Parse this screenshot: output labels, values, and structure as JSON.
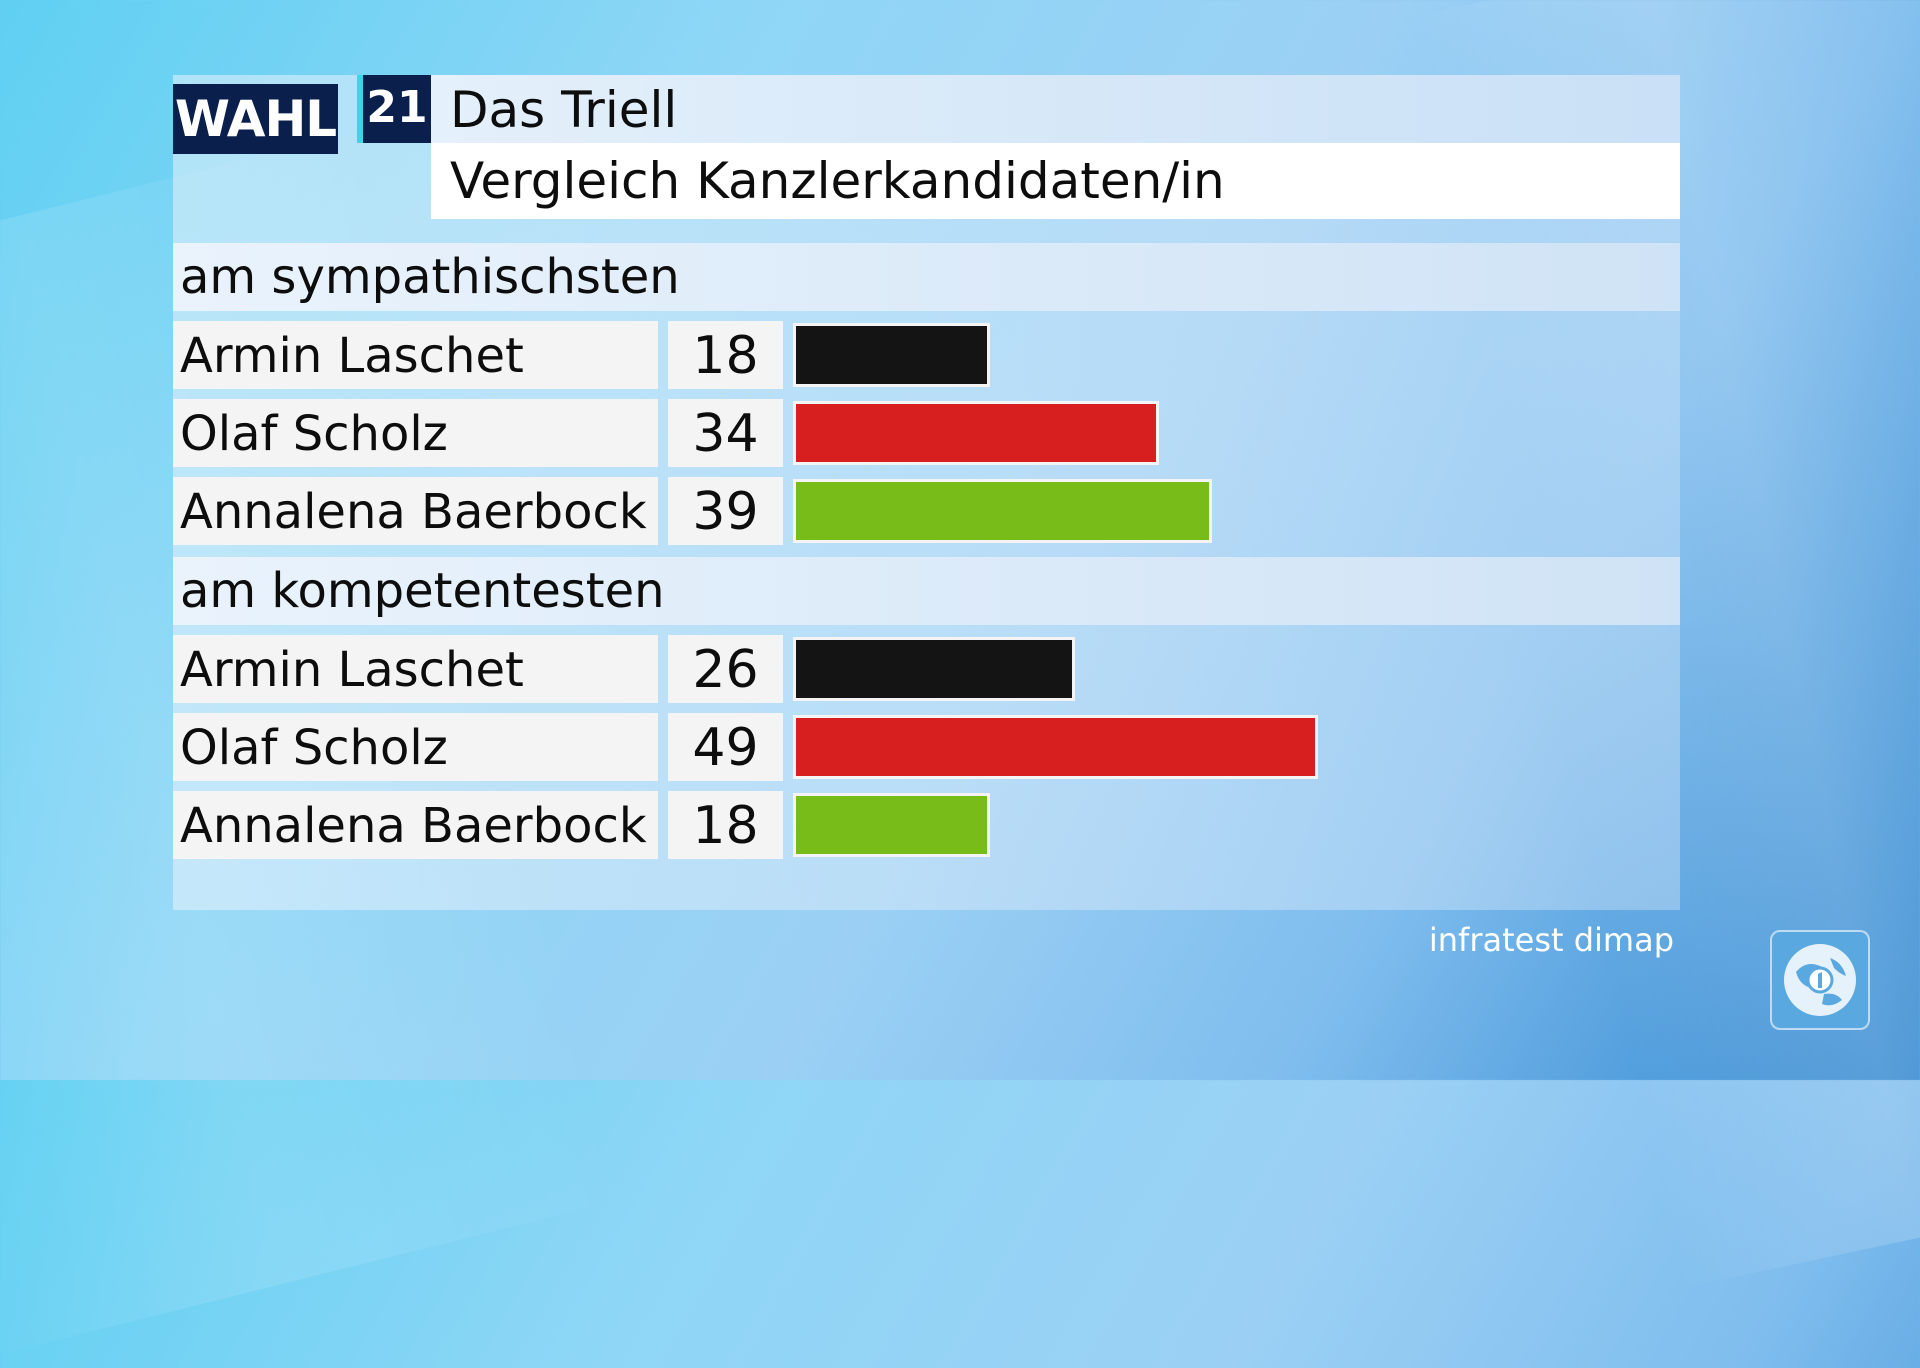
{
  "header": {
    "logo_word": "WAHL",
    "logo_number": "21",
    "title": "Das Triell",
    "subtitle": "Vergleich Kanzlerkandidaten/in"
  },
  "source": "infratest dimap",
  "chart_data": {
    "type": "bar",
    "title": "Das Triell",
    "subtitle": "Vergleich Kanzlerkandidaten/in",
    "groups": [
      {
        "label": "am sympathischsten",
        "rows": [
          {
            "name": "Armin Laschet",
            "value": 18,
            "value_label": "18",
            "color": "#141414"
          },
          {
            "name": "Olaf Scholz",
            "value": 34,
            "value_label": "34",
            "color": "#d81f1f"
          },
          {
            "name": "Annalena Baerbock",
            "value": 39,
            "value_label": "39",
            "color": "#78bc1a"
          }
        ]
      },
      {
        "label": "am kompetentesten",
        "rows": [
          {
            "name": "Armin Laschet",
            "value": 26,
            "value_label": "26",
            "color": "#141414"
          },
          {
            "name": "Olaf Scholz",
            "value": 49,
            "value_label": "49",
            "color": "#d81f1f"
          },
          {
            "name": "Annalena Baerbock",
            "value": 18,
            "value_label": "18",
            "color": "#78bc1a"
          }
        ]
      }
    ]
  }
}
